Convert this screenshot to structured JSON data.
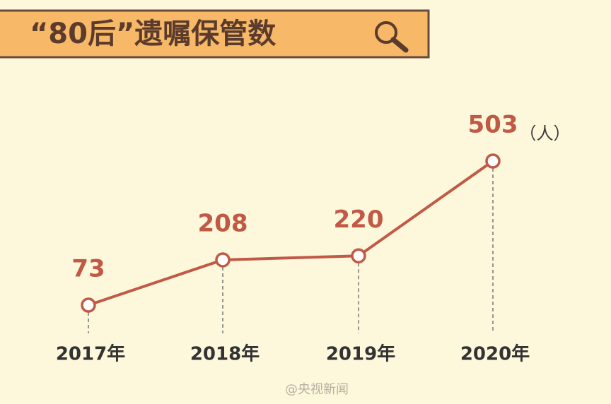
{
  "chart_data": {
    "type": "line",
    "title": "“80后”遗嘱保管数",
    "categories": [
      "2017年",
      "2018年",
      "2019年",
      "2020年"
    ],
    "values": [
      73,
      208,
      220,
      503
    ],
    "unit_label": "（人）",
    "color": "#c05a45",
    "watermark": "@央视新闻"
  }
}
